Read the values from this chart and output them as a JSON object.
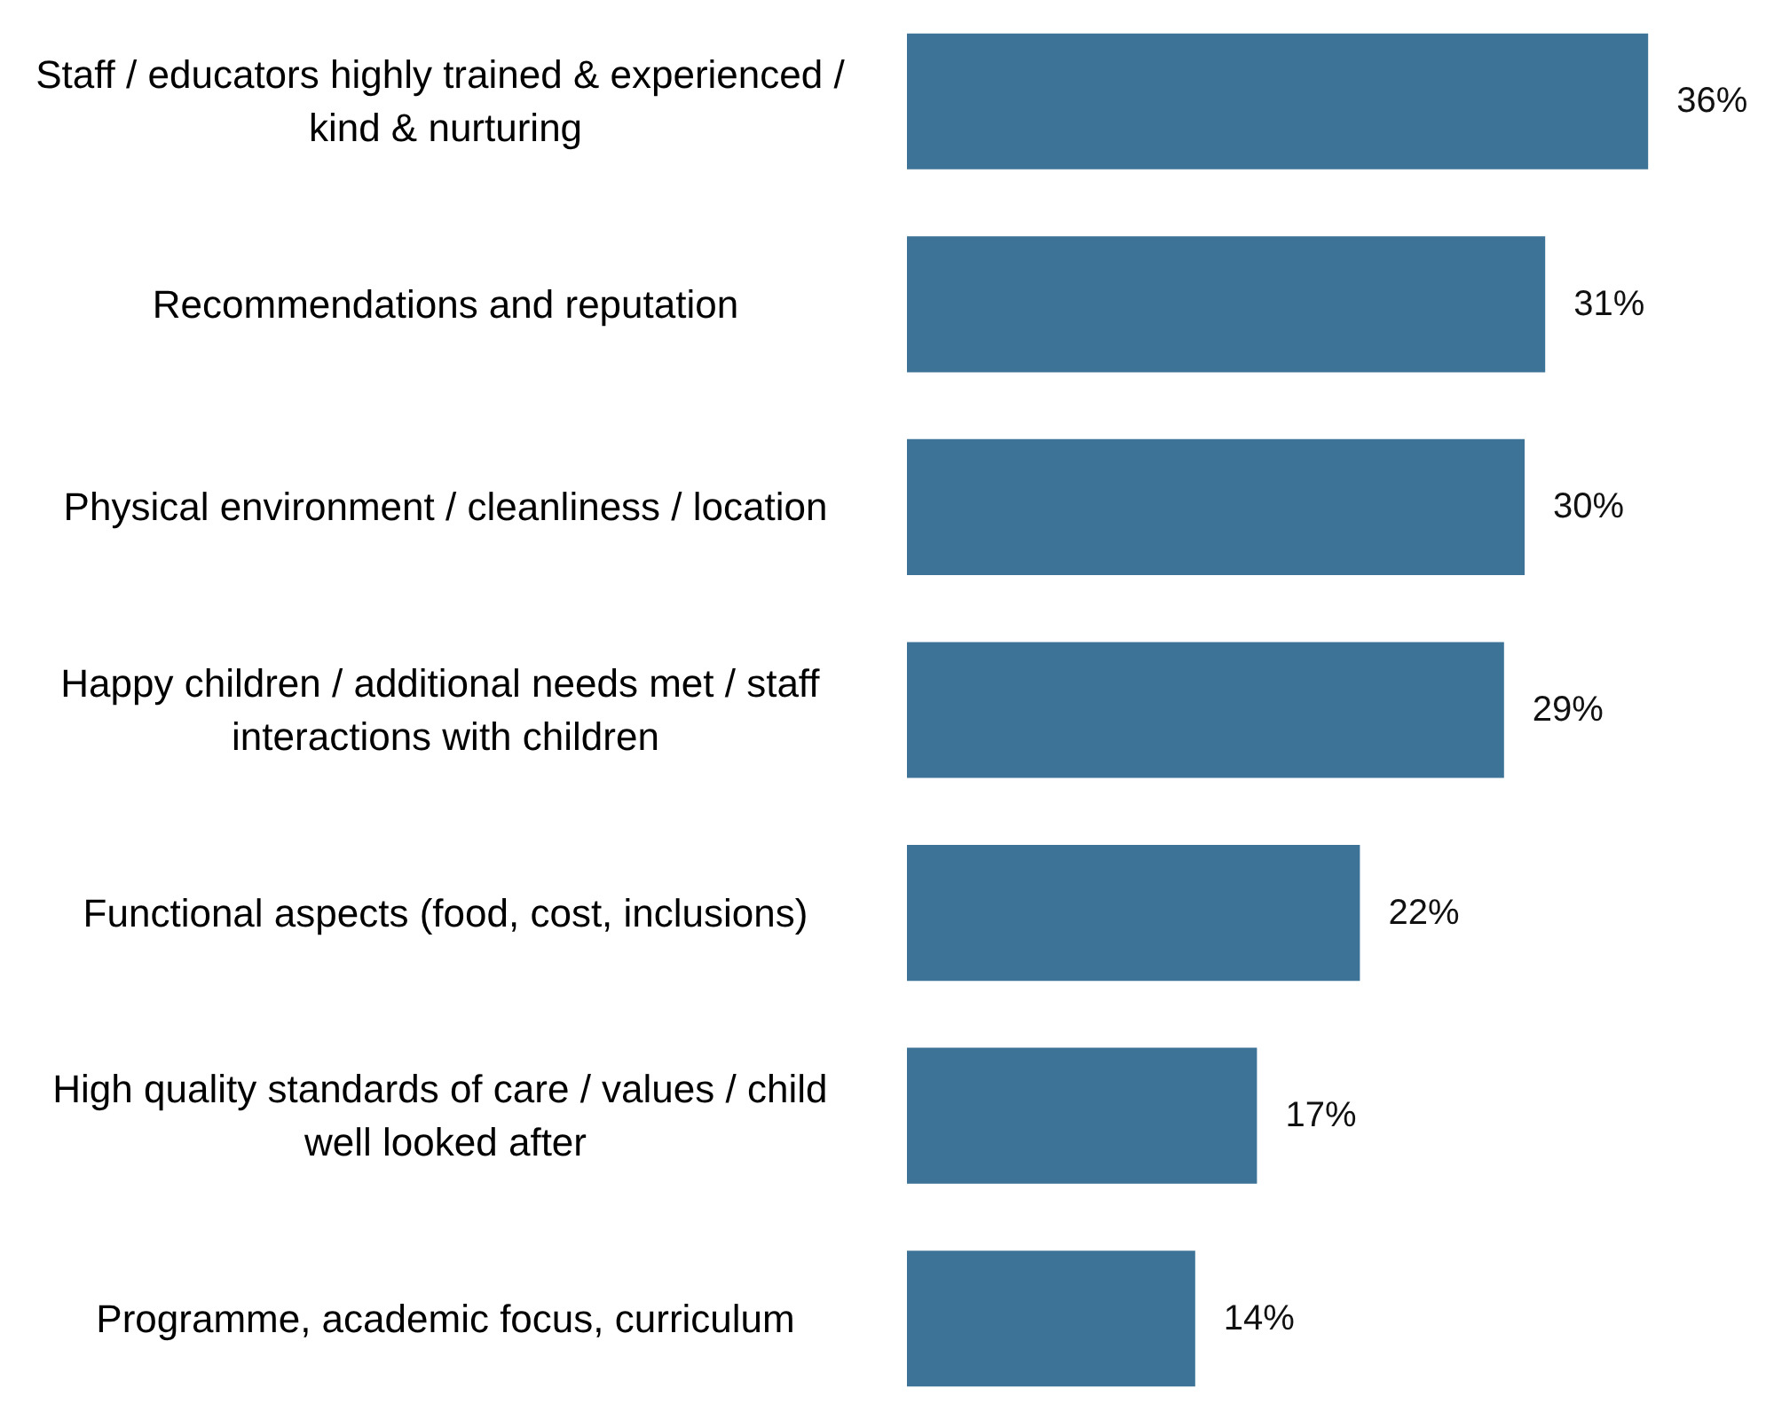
{
  "chart_data": {
    "type": "bar",
    "orientation": "horizontal",
    "categories": [
      "Staff / educators highly trained & experienced / kind & nurturing",
      "Recommendations and reputation",
      "Physical environment / cleanliness / location",
      "Happy children / additional needs met / staff interactions with children",
      "Functional aspects (food, cost, inclusions)",
      "High quality standards of care / values / child well looked after",
      "Programme, academic focus, curriculum"
    ],
    "values": [
      36,
      31,
      30,
      29,
      22,
      17,
      14
    ],
    "value_labels": [
      "36%",
      "31%",
      "30%",
      "29%",
      "22%",
      "17%",
      "14%"
    ],
    "color": "#3c7397"
  }
}
